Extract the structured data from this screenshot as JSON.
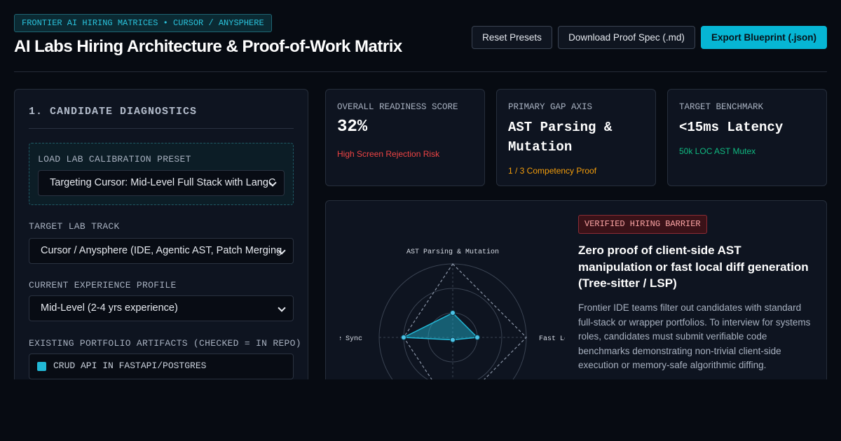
{
  "header": {
    "badge": "FRONTIER AI HIRING MATRICES • CURSOR / ANYSPHERE",
    "title": "AI Labs Hiring Architecture & Proof-of-Work Matrix",
    "buttons": [
      "Reset Presets",
      "Download Proof Spec (.md)",
      "Export Blueprint (.json)"
    ]
  },
  "diagnostics": {
    "title": "1. CANDIDATE DIAGNOSTICS",
    "preset_label": "LOAD LAB CALIBRATION PRESET",
    "preset_value": "Targeting Cursor: Mid-Level Full Stack with LangC",
    "track_label": "TARGET LAB TRACK",
    "track_value": "Cursor / Anysphere (IDE, Agentic AST, Patch Merging",
    "experience_label": "CURRENT EXPERIENCE PROFILE",
    "experience_value": "Mid-Level (2-4 yrs experience)",
    "artifacts_label": "EXISTING PORTFOLIO ARTIFACTS (CHECKED = IN REPO)",
    "artifacts": [
      "CRUD API IN FASTAPI/POSTGRES"
    ]
  },
  "metrics": [
    {
      "label": "OVERALL READINESS SCORE",
      "value": "32%",
      "note": "High Screen Rejection Risk"
    },
    {
      "label": "PRIMARY GAP AXIS",
      "value": "AST Parsing & Mutation",
      "note": "1 / 3 Competency Proof"
    },
    {
      "label": "TARGET BENCHMARK",
      "value": "<15ms Latency",
      "note": "50k LOC AST Mutex"
    }
  ],
  "chart_data": {
    "type": "radar",
    "categories": [
      "AST Parsing & Mutation",
      "Fast Lo",
      null,
      "e Sync"
    ],
    "ylim": [
      0,
      3
    ],
    "yticks": [
      1,
      2,
      3
    ],
    "series": [
      {
        "color": "#22b8d6",
        "values": [
          1,
          1,
          0.1,
          2
        ]
      },
      {
        "color": "#8a94a6",
        "values": [
          3,
          3,
          3,
          2
        ]
      }
    ]
  },
  "barrier": {
    "badge": "VERIFIED HIRING BARRIER",
    "heading": "Zero proof of client-side AST manipulation or fast local diff generation (Tree-sitter / LSP)",
    "body": "Frontier IDE teams filter out candidates with standard full-stack or wrapper portfolios. To interview for systems roles, candidates must submit verifiable code benchmarks demonstrating non-trivial client-side execution or memory-safe algorithmic diffing."
  }
}
